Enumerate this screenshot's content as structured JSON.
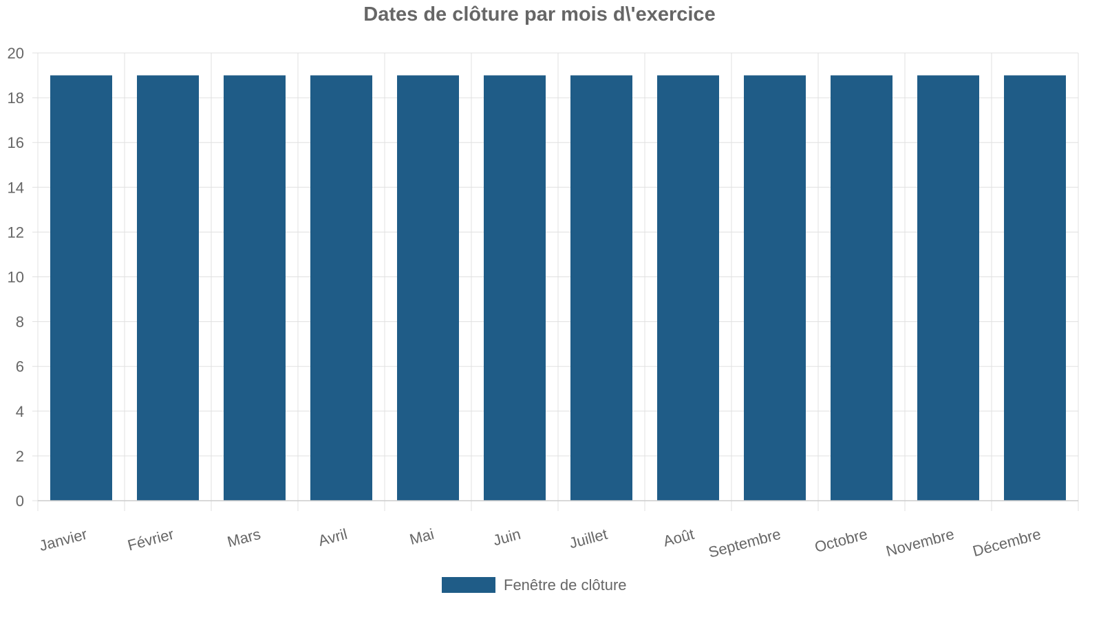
{
  "chart_data": {
    "type": "bar",
    "title": "Dates de clôture par mois d\\'exercice",
    "xlabel": "",
    "ylabel": "",
    "categories": [
      "Janvier",
      "Février",
      "Mars",
      "Avril",
      "Mai",
      "Juin",
      "Juillet",
      "Août",
      "Septembre",
      "Octobre",
      "Novembre",
      "Décembre"
    ],
    "series": [
      {
        "name": "Fenêtre de clôture",
        "values": [
          19,
          19,
          19,
          19,
          19,
          19,
          19,
          19,
          19,
          19,
          19,
          19
        ],
        "color": "#1f5c87"
      }
    ],
    "ylim": [
      0,
      20
    ],
    "yticks": [
      0,
      2,
      4,
      6,
      8,
      10,
      12,
      14,
      16,
      18,
      20
    ],
    "grid": true,
    "legend": "bottom-center"
  }
}
